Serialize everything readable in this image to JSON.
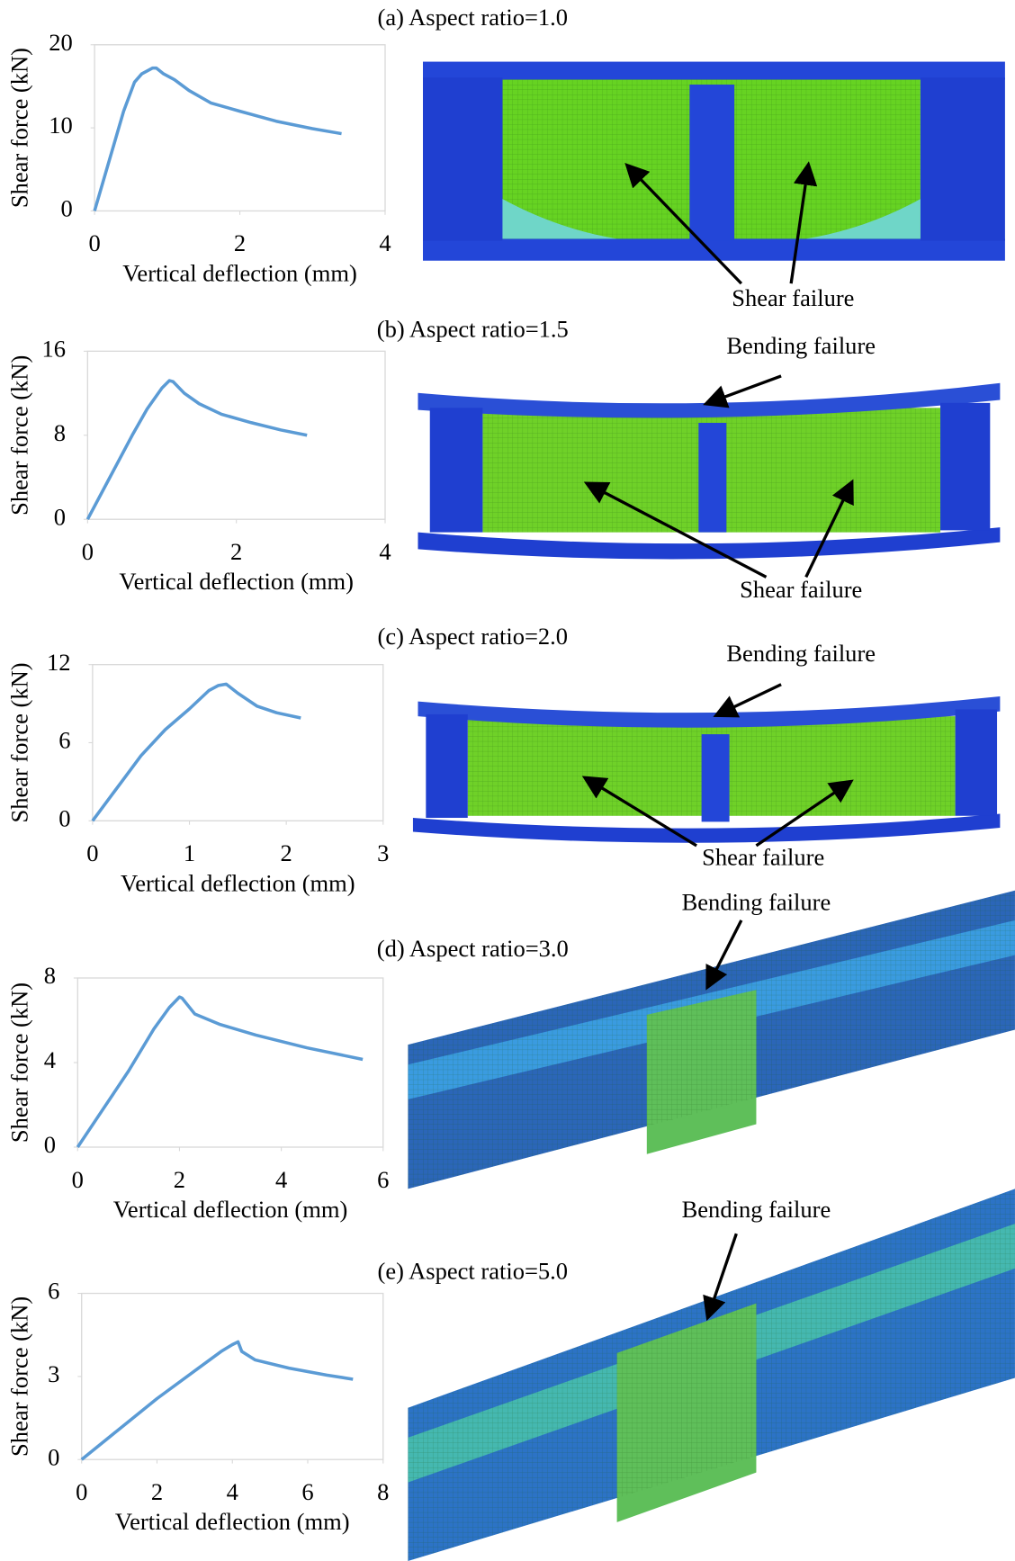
{
  "chart_data": [
    {
      "type": "line",
      "title": "(a) Aspect ratio=1.0",
      "x_label": "Vertical deflection (mm)",
      "y_label": "Shear force (kN)",
      "x": [
        0,
        0.2,
        0.4,
        0.55,
        0.65,
        0.8,
        0.85,
        0.95,
        1.1,
        1.3,
        1.6,
        2,
        2.5,
        3,
        3.4
      ],
      "values": [
        0,
        6,
        12,
        15.5,
        16.5,
        17.2,
        17.2,
        16.5,
        15.8,
        14.5,
        13,
        12,
        10.8,
        9.9,
        9.3
      ],
      "color": "#5b9bd5",
      "xlim": [
        0,
        4
      ],
      "ylim": [
        0,
        20
      ],
      "xticks": [
        0,
        2,
        4
      ],
      "yticks": [
        0,
        10,
        20
      ],
      "annotations": [
        "Shear failure"
      ]
    },
    {
      "type": "line",
      "title": "(b) Aspect ratio=1.5",
      "x_label": "Vertical deflection (mm)",
      "y_label": "Shear force (kN)",
      "x": [
        0,
        0.3,
        0.6,
        0.8,
        1,
        1.1,
        1.15,
        1.3,
        1.5,
        1.8,
        2.2,
        2.6,
        2.95
      ],
      "values": [
        0,
        4,
        8,
        10.5,
        12.5,
        13.2,
        13.1,
        12,
        11,
        10,
        9.2,
        8.5,
        8
      ],
      "color": "#5b9bd5",
      "xlim": [
        0,
        4
      ],
      "ylim": [
        0,
        16
      ],
      "xticks": [
        0,
        2,
        4
      ],
      "yticks": [
        0,
        8,
        16
      ],
      "annotations": [
        "Bending failure",
        "Shear failure"
      ]
    },
    {
      "type": "line",
      "title": "(c) Aspect ratio=2.0",
      "x_label": "Vertical deflection (mm)",
      "y_label": "Shear force (kN)",
      "x": [
        0,
        0.3,
        0.5,
        0.75,
        1,
        1.2,
        1.3,
        1.38,
        1.5,
        1.7,
        1.9,
        2.15
      ],
      "values": [
        0,
        3,
        5,
        7,
        8.6,
        10,
        10.4,
        10.5,
        9.8,
        8.8,
        8.3,
        7.9
      ],
      "color": "#5b9bd5",
      "xlim": [
        0,
        3
      ],
      "ylim": [
        0,
        12
      ],
      "xticks": [
        0,
        1,
        2,
        3
      ],
      "yticks": [
        0,
        6,
        12
      ],
      "annotations": [
        "Bending failure",
        "Shear failure"
      ]
    },
    {
      "type": "line",
      "title": "(d) Aspect ratio=3.0",
      "x_label": "Vertical deflection (mm)",
      "y_label": "Shear force (kN)",
      "x": [
        0,
        0.5,
        1,
        1.5,
        1.8,
        2,
        2.05,
        2.3,
        2.8,
        3.5,
        4.5,
        5.6
      ],
      "values": [
        0,
        1.8,
        3.6,
        5.6,
        6.6,
        7.1,
        7.05,
        6.3,
        5.8,
        5.3,
        4.7,
        4.15
      ],
      "color": "#5b9bd5",
      "xlim": [
        0,
        6
      ],
      "ylim": [
        0,
        8
      ],
      "xticks": [
        0,
        2,
        4,
        6
      ],
      "yticks": [
        0,
        4,
        8
      ],
      "annotations": [
        "Bending failure"
      ]
    },
    {
      "type": "line",
      "title": "(e) Aspect ratio=5.0",
      "x_label": "Vertical deflection (mm)",
      "y_label": "Shear force (kN)",
      "x": [
        0,
        1,
        2,
        3,
        3.7,
        4,
        4.15,
        4.25,
        4.6,
        5.5,
        6.5,
        7.2
      ],
      "values": [
        0,
        1.1,
        2.2,
        3.2,
        3.9,
        4.15,
        4.25,
        3.9,
        3.6,
        3.3,
        3.05,
        2.9
      ],
      "color": "#5b9bd5",
      "xlim": [
        0,
        8
      ],
      "ylim": [
        0,
        6
      ],
      "xticks": [
        0,
        2,
        4,
        6,
        8
      ],
      "yticks": [
        0,
        3,
        6
      ],
      "annotations": [
        "Bending failure"
      ]
    }
  ]
}
